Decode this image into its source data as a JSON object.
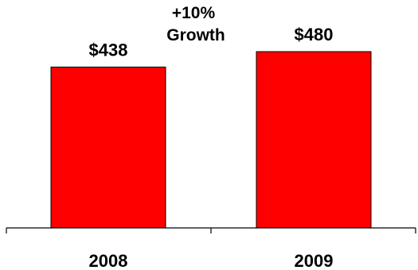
{
  "chart_data": {
    "type": "bar",
    "categories": [
      "2008",
      "2009"
    ],
    "values": [
      438,
      480
    ],
    "value_labels": [
      "$438",
      "$480"
    ],
    "annotation": [
      "+10%",
      "Growth"
    ],
    "title": "",
    "xlabel": "",
    "ylabel": "",
    "ylim": [
      0,
      540
    ],
    "grid": false,
    "legend": "none",
    "colors": {
      "bar_fill": "#ff0000",
      "bar_stroke": "#000000",
      "text": "#000000",
      "axis": "#000000"
    }
  }
}
